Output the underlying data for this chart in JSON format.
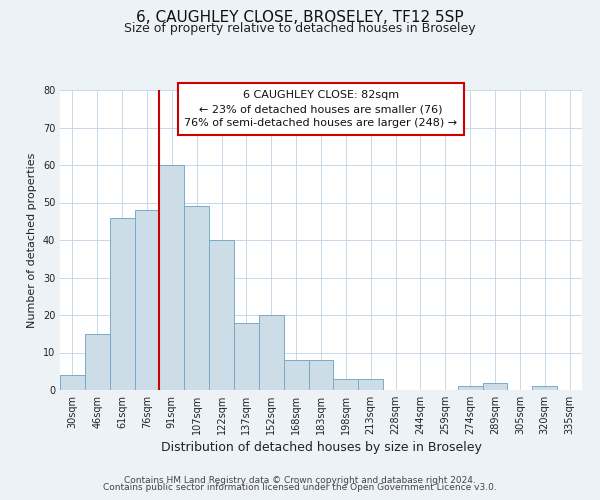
{
  "title": "6, CAUGHLEY CLOSE, BROSELEY, TF12 5SP",
  "subtitle": "Size of property relative to detached houses in Broseley",
  "xlabel": "Distribution of detached houses by size in Broseley",
  "ylabel": "Number of detached properties",
  "bar_labels": [
    "30sqm",
    "46sqm",
    "61sqm",
    "76sqm",
    "91sqm",
    "107sqm",
    "122sqm",
    "137sqm",
    "152sqm",
    "168sqm",
    "183sqm",
    "198sqm",
    "213sqm",
    "228sqm",
    "244sqm",
    "259sqm",
    "274sqm",
    "289sqm",
    "305sqm",
    "320sqm",
    "335sqm"
  ],
  "bar_values": [
    4,
    15,
    46,
    48,
    60,
    49,
    40,
    18,
    20,
    8,
    8,
    3,
    3,
    0,
    0,
    0,
    1,
    2,
    0,
    1,
    0
  ],
  "bar_color": "#ccdde8",
  "bar_edge_color": "#7aaac8",
  "ylim": [
    0,
    80
  ],
  "yticks": [
    0,
    10,
    20,
    30,
    40,
    50,
    60,
    70,
    80
  ],
  "vline_index": 3.5,
  "vline_color": "#cc0000",
  "annotation_text": "6 CAUGHLEY CLOSE: 82sqm\n← 23% of detached houses are smaller (76)\n76% of semi-detached houses are larger (248) →",
  "footer_line1": "Contains HM Land Registry data © Crown copyright and database right 2024.",
  "footer_line2": "Contains public sector information licensed under the Open Government Licence v3.0.",
  "background_color": "#edf2f7",
  "plot_bg_color": "#ffffff",
  "grid_color": "#c8d8e8",
  "title_fontsize": 11,
  "subtitle_fontsize": 9,
  "xlabel_fontsize": 9,
  "ylabel_fontsize": 8,
  "tick_fontsize": 7,
  "annotation_fontsize": 8,
  "footer_fontsize": 6.5
}
